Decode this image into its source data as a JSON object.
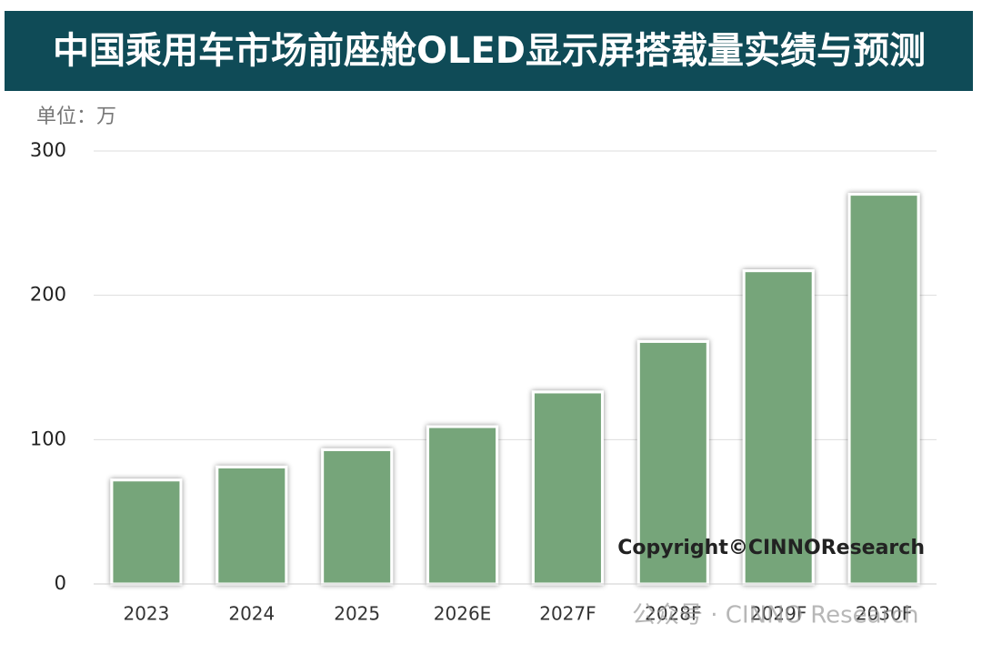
{
  "chart_data": {
    "type": "bar",
    "title": "中国乘用车市场前座舱OLED显示屏搭载量实绩与预测",
    "unit": "单位：万",
    "copyright": "Copyright©CINNOResearch",
    "watermark": "公众号 · CINNO Research",
    "categories": [
      "2023",
      "2024",
      "2025",
      "2026E",
      "2027F",
      "2028F",
      "2029F",
      "2030F"
    ],
    "values": [
      72,
      81,
      93,
      109,
      133,
      168,
      217,
      270
    ],
    "color": "#76a57a",
    "ylim": [
      0,
      300
    ],
    "yticks": [
      0,
      100,
      200,
      300
    ],
    "grid": true
  }
}
